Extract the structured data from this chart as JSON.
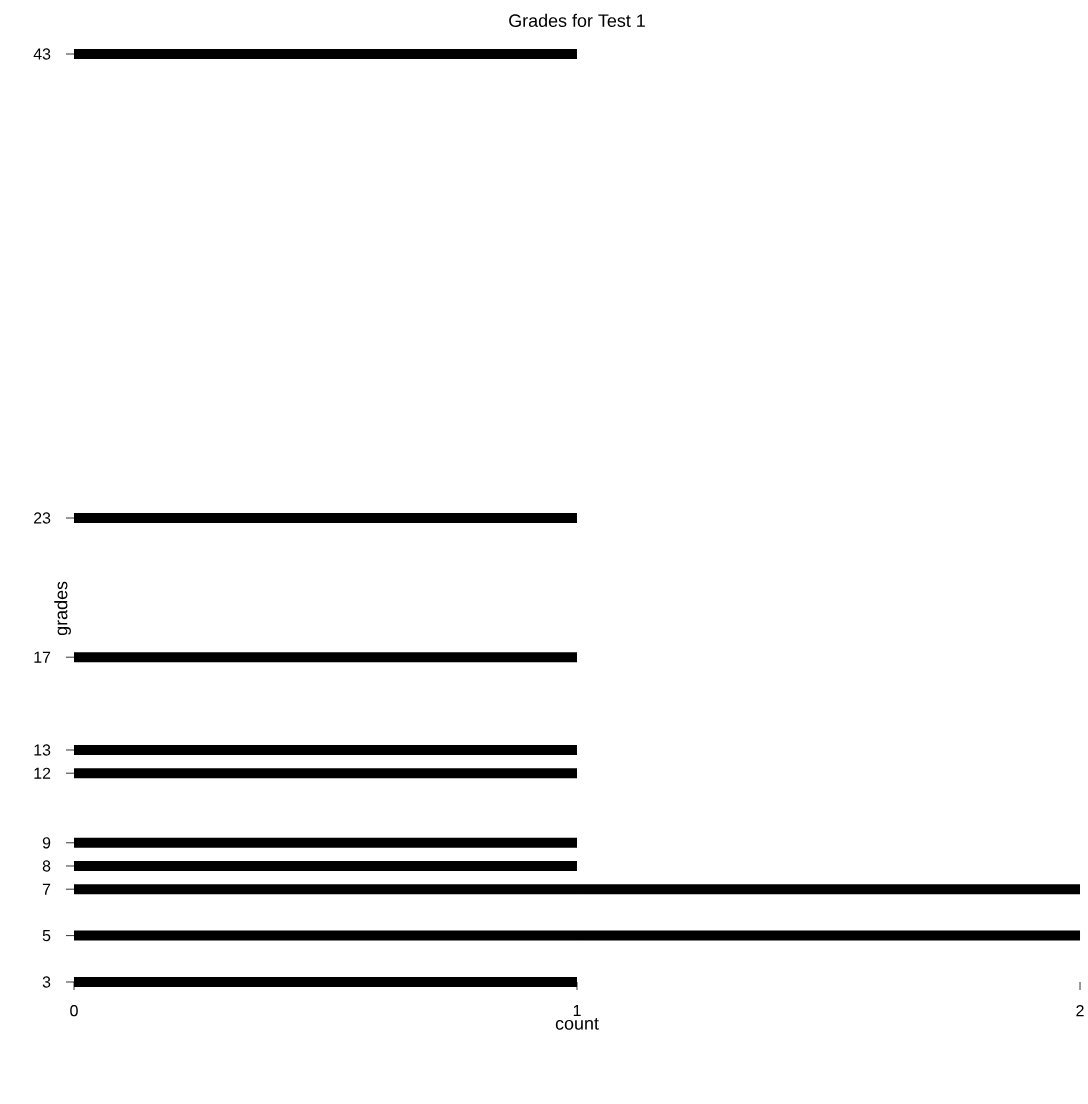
{
  "chart_data": {
    "type": "bar",
    "orientation": "horizontal",
    "stacked": true,
    "title": "Grades for Test 1",
    "xlabel": "count",
    "ylabel": "grades",
    "x": [
      3,
      5,
      7,
      8,
      9,
      12,
      13,
      17,
      23,
      43
    ],
    "series": [
      {
        "color": "#000000",
        "values": [
          1,
          1,
          1,
          1,
          1,
          1,
          1,
          1,
          1,
          1
        ]
      },
      {
        "color": "#000000",
        "values": [
          null,
          1,
          1,
          null,
          null,
          null,
          null,
          null,
          null,
          null
        ]
      }
    ],
    "xlim": [
      0,
      2
    ],
    "xticks": [
      0,
      1,
      2
    ],
    "ylim": [
      3,
      43
    ],
    "yticks": [
      3,
      5,
      7,
      8,
      9,
      12,
      13,
      17,
      23,
      43
    ],
    "grid": false
  }
}
